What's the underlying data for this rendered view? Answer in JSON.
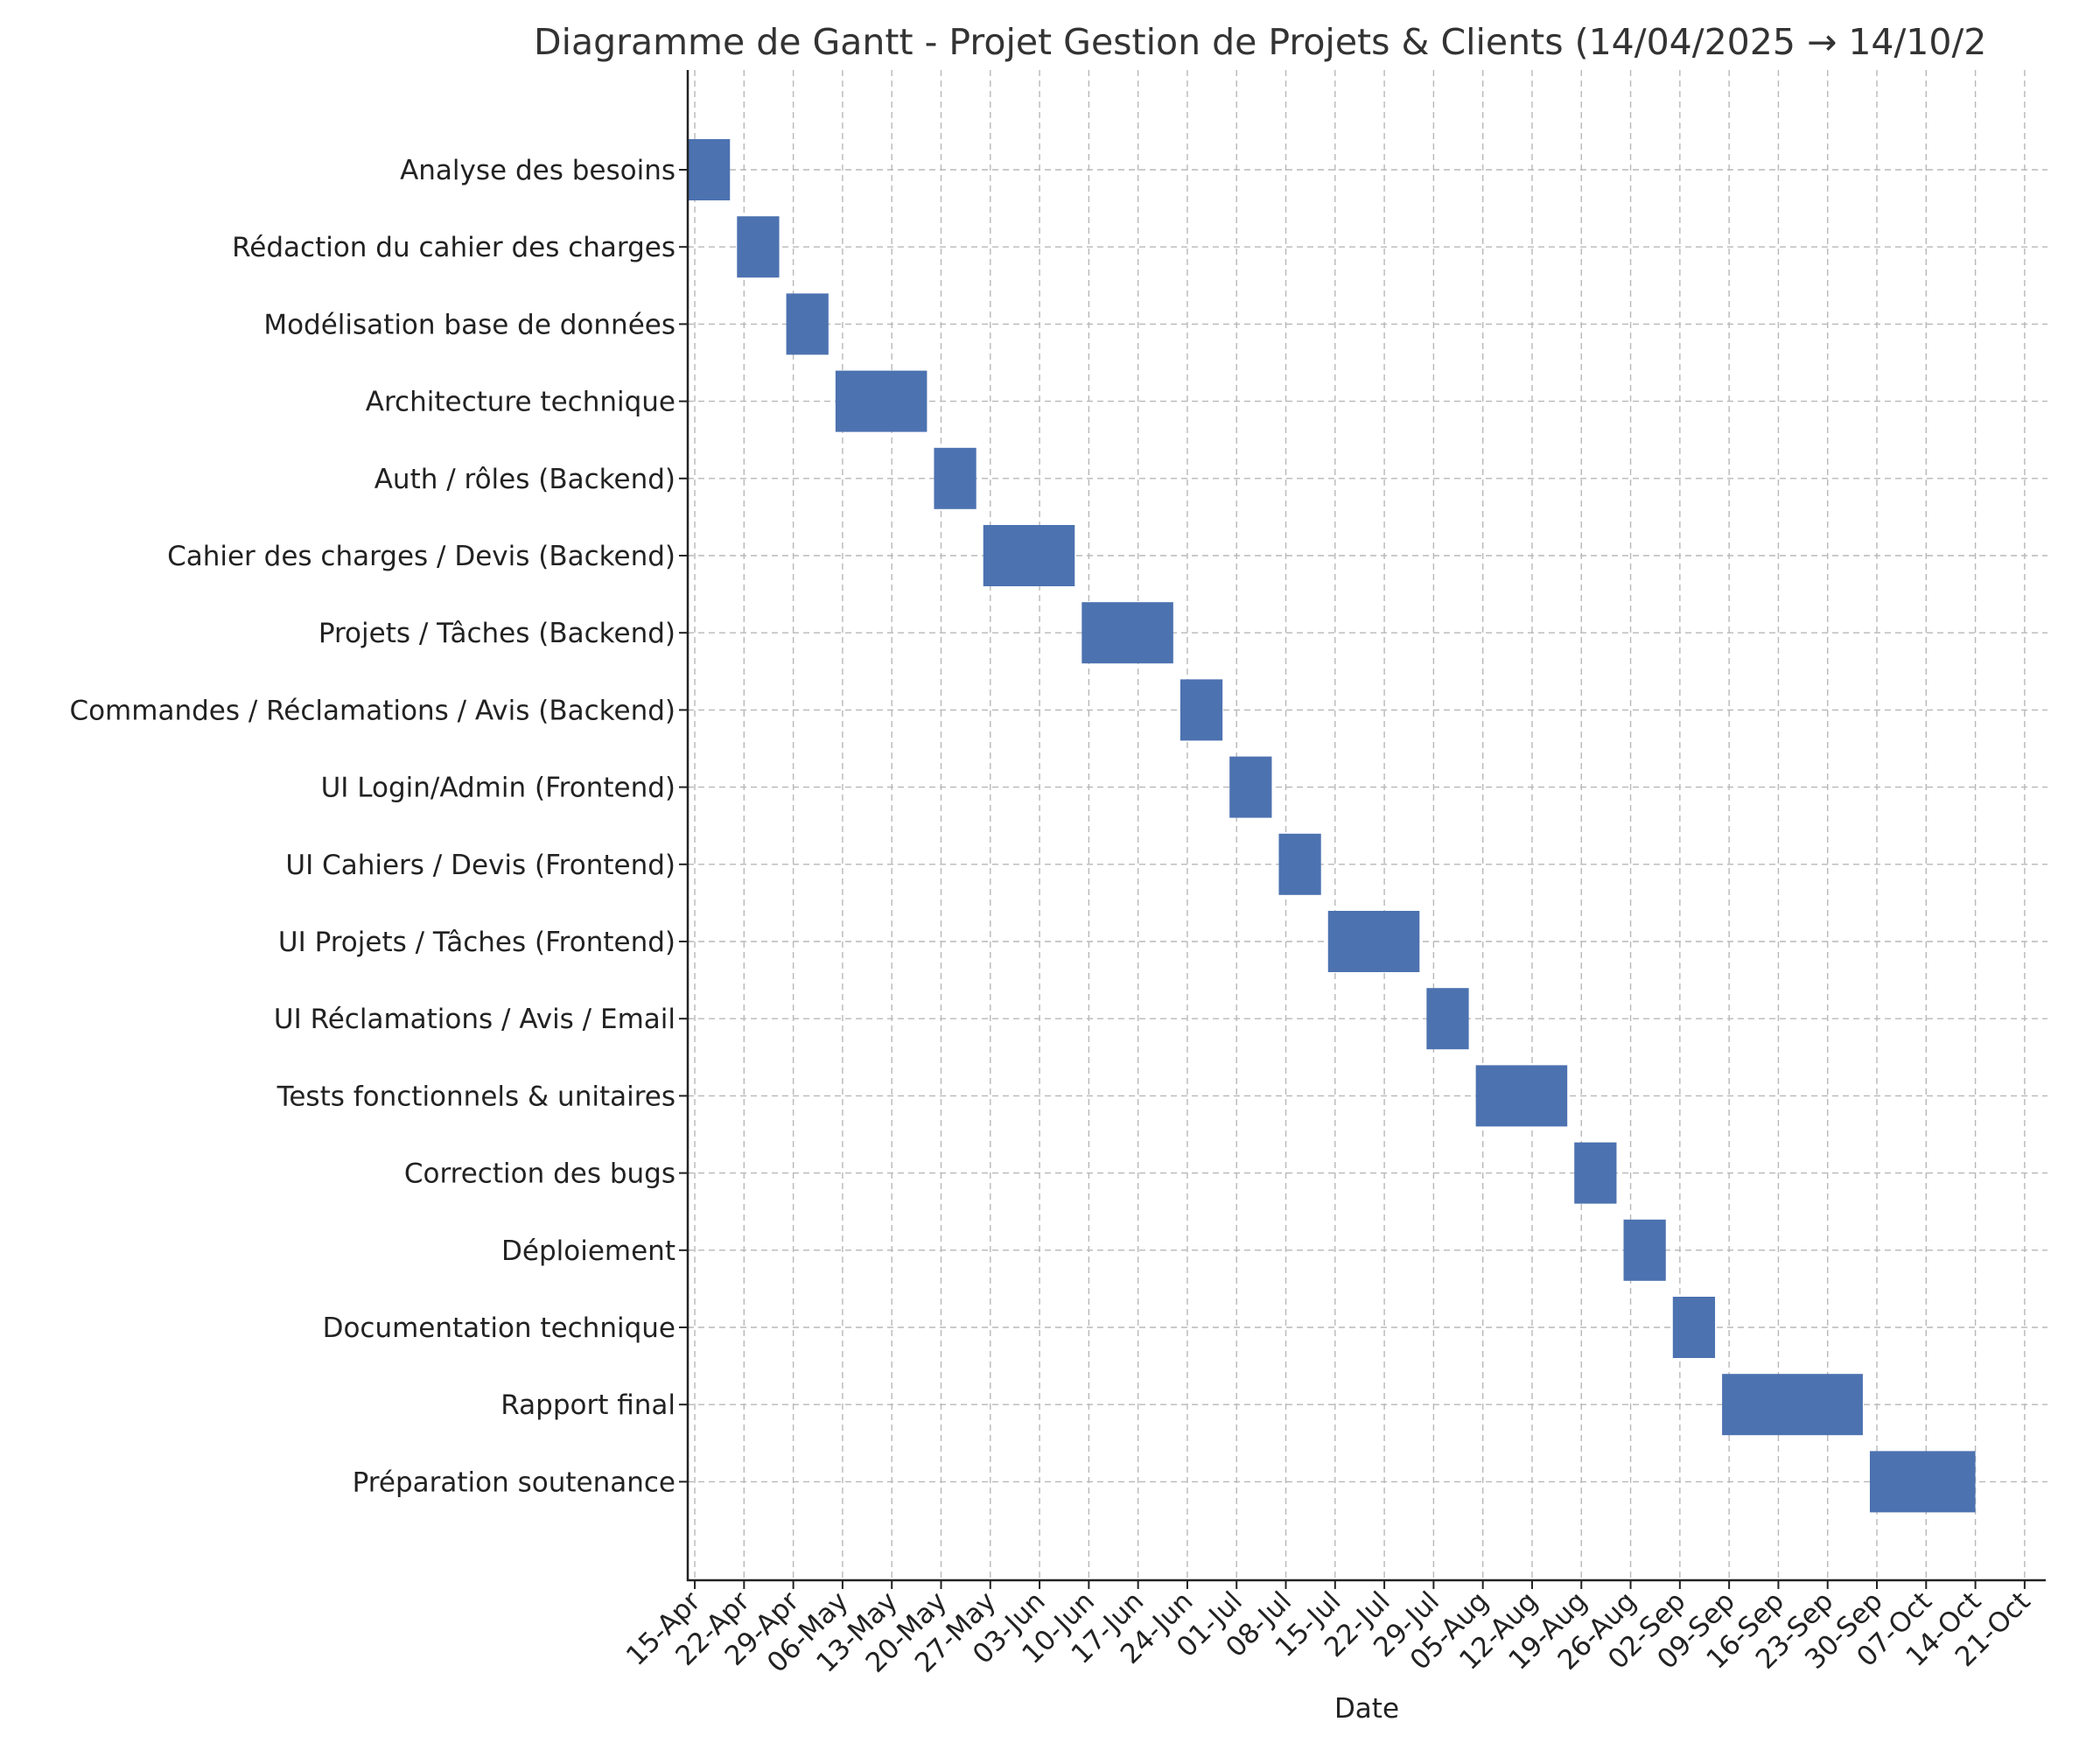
{
  "chart_data": {
    "type": "gantt",
    "title": "Diagramme de Gantt - Projet Gestion de Projets & Clients (14/04/2025 → 14/10/2",
    "xlabel": "Date",
    "ylabel": "",
    "x_domain": [
      "2025-04-14",
      "2025-10-24"
    ],
    "grid": true,
    "bar_color": "#4c72b0",
    "tick_labels": [
      "15-Apr",
      "22-Apr",
      "29-Apr",
      "06-May",
      "13-May",
      "20-May",
      "27-May",
      "03-Jun",
      "10-Jun",
      "17-Jun",
      "24-Jun",
      "01-Jul",
      "08-Jul",
      "15-Jul",
      "22-Jul",
      "29-Jul",
      "05-Aug",
      "12-Aug",
      "19-Aug",
      "26-Aug",
      "02-Sep",
      "09-Sep",
      "16-Sep",
      "23-Sep",
      "30-Sep",
      "07-Oct",
      "14-Oct",
      "21-Oct"
    ],
    "tick_dates": [
      "2025-04-15",
      "2025-04-22",
      "2025-04-29",
      "2025-05-06",
      "2025-05-13",
      "2025-05-20",
      "2025-05-27",
      "2025-06-03",
      "2025-06-10",
      "2025-06-17",
      "2025-06-24",
      "2025-07-01",
      "2025-07-08",
      "2025-07-15",
      "2025-07-22",
      "2025-07-29",
      "2025-08-05",
      "2025-08-12",
      "2025-08-19",
      "2025-08-26",
      "2025-09-02",
      "2025-09-09",
      "2025-09-16",
      "2025-09-23",
      "2025-09-30",
      "2025-10-07",
      "2025-10-14",
      "2025-10-21"
    ],
    "tasks": [
      {
        "name": "Analyse des besoins",
        "start": "2025-04-14",
        "end": "2025-04-20"
      },
      {
        "name": "Rédaction du cahier des charges",
        "start": "2025-04-21",
        "end": "2025-04-27"
      },
      {
        "name": "Modélisation base de données",
        "start": "2025-04-28",
        "end": "2025-05-04"
      },
      {
        "name": "Architecture technique",
        "start": "2025-05-05",
        "end": "2025-05-18"
      },
      {
        "name": "Auth / rôles (Backend)",
        "start": "2025-05-19",
        "end": "2025-05-25"
      },
      {
        "name": "Cahier des charges / Devis (Backend)",
        "start": "2025-05-26",
        "end": "2025-06-08"
      },
      {
        "name": "Projets / Tâches (Backend)",
        "start": "2025-06-09",
        "end": "2025-06-22"
      },
      {
        "name": "Commandes / Réclamations / Avis (Backend)",
        "start": "2025-06-23",
        "end": "2025-06-29"
      },
      {
        "name": "UI Login/Admin (Frontend)",
        "start": "2025-06-30",
        "end": "2025-07-06"
      },
      {
        "name": "UI Cahiers / Devis (Frontend)",
        "start": "2025-07-07",
        "end": "2025-07-13"
      },
      {
        "name": "UI Projets / Tâches (Frontend)",
        "start": "2025-07-14",
        "end": "2025-07-27"
      },
      {
        "name": "UI Réclamations / Avis / Email",
        "start": "2025-07-28",
        "end": "2025-08-03"
      },
      {
        "name": "Tests fonctionnels & unitaires",
        "start": "2025-08-04",
        "end": "2025-08-17"
      },
      {
        "name": "Correction des bugs",
        "start": "2025-08-18",
        "end": "2025-08-24"
      },
      {
        "name": "Déploiement",
        "start": "2025-08-25",
        "end": "2025-08-31"
      },
      {
        "name": "Documentation technique",
        "start": "2025-09-01",
        "end": "2025-09-07"
      },
      {
        "name": "Rapport final",
        "start": "2025-09-08",
        "end": "2025-09-28"
      },
      {
        "name": "Préparation soutenance",
        "start": "2025-09-29",
        "end": "2025-10-14"
      }
    ]
  }
}
